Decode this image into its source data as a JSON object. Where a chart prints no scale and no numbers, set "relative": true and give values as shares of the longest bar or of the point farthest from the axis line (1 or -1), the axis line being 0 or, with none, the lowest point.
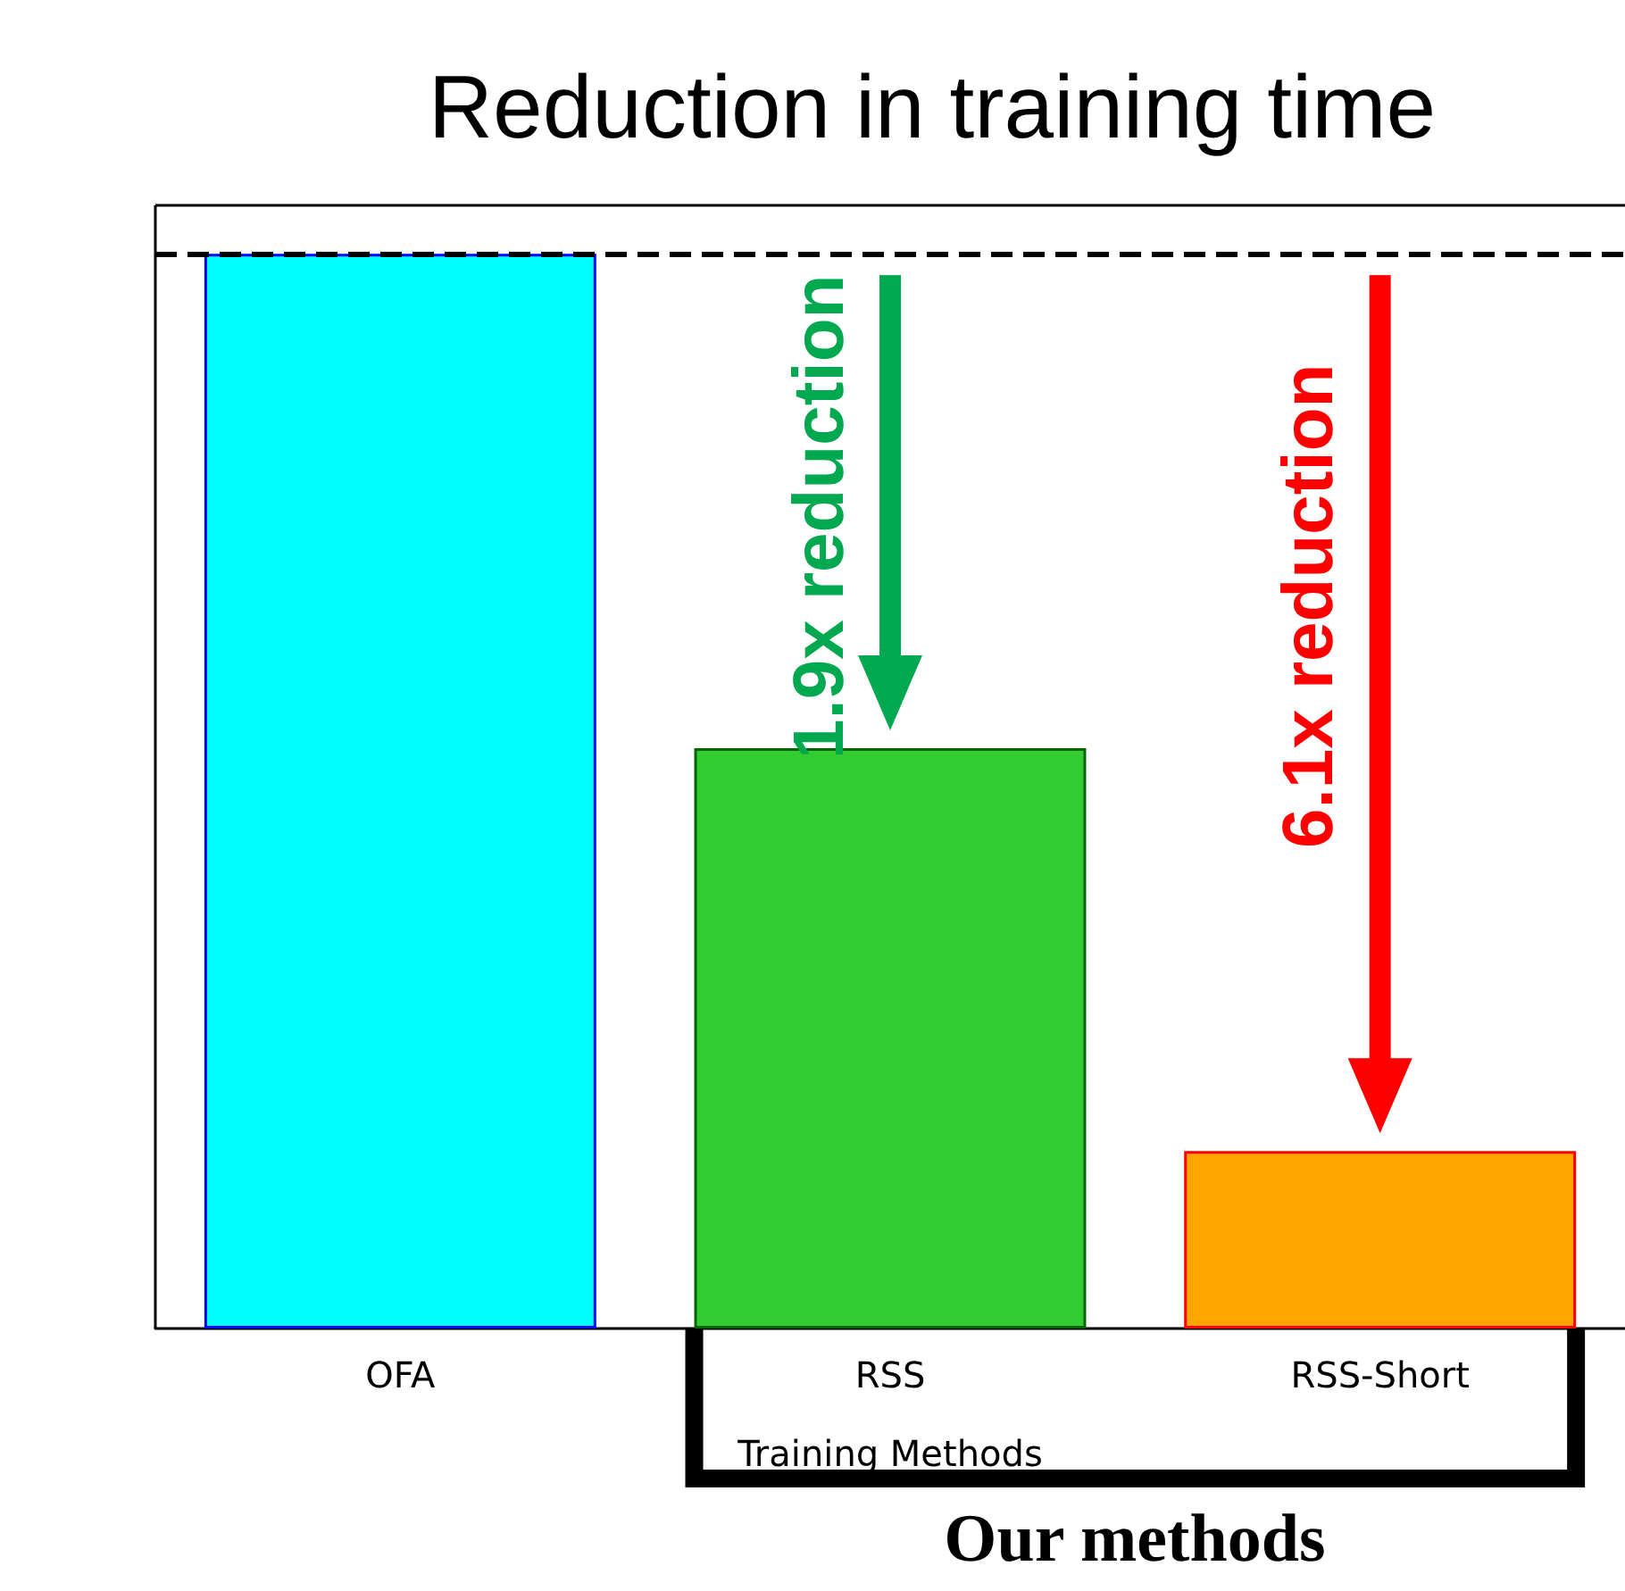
{
  "chart_data": {
    "type": "bar",
    "title": "Reduction in training time",
    "xlabel": "Training Methods",
    "categories": [
      "OFA",
      "RSS",
      "RSS-Short"
    ],
    "values": [
      1,
      0.54,
      0.165
    ],
    "colors": [
      "#00ffff",
      "#33cc33",
      "#ffa500"
    ],
    "relative": true,
    "grid": false,
    "ref_lines": [
      {
        "axis": "y",
        "value": 1,
        "color": "#000000",
        "line_style": "dashed"
      }
    ],
    "annotations": [
      "1.9x reduction",
      "6.1x reduction",
      "Our methods"
    ]
  }
}
